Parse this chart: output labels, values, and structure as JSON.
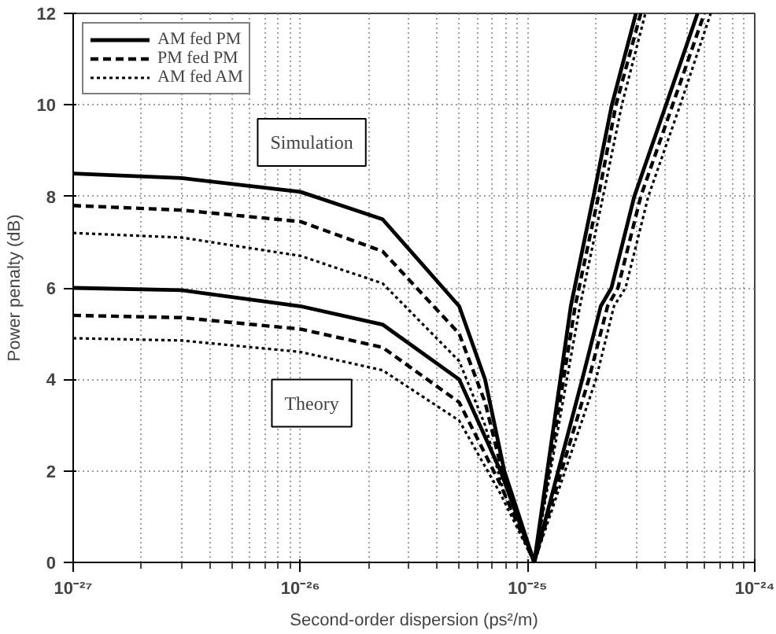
{
  "chart_data": {
    "type": "line",
    "xlabel": "Second-order dispersion (ps²/m)",
    "ylabel": "Power penalty (dB)",
    "log": "x",
    "grid": true,
    "legend": "top left",
    "xlim": [
      1e-27,
      1e-24
    ],
    "ylim": [
      0,
      12
    ],
    "xticks": [
      {
        "value": 1e-27,
        "label": "10⁻²⁷"
      },
      {
        "value": 1e-26,
        "label": "10⁻²⁶"
      },
      {
        "value": 1e-25,
        "label": "10⁻²⁵"
      },
      {
        "value": 1e-24,
        "label": "10⁻²⁴"
      }
    ],
    "yticks": [
      0,
      2,
      4,
      6,
      8,
      10,
      12
    ],
    "annotations": [
      "Simulation",
      "Theory"
    ],
    "series": [
      {
        "name": "AM fed PM",
        "color": "#000000",
        "line_style": "solid",
        "x": [
          1e-27,
          3e-27,
          1e-26,
          2.3e-26,
          5e-26,
          6.5e-26,
          7.9e-26,
          1.07e-25,
          1.55e-25,
          1.95e-25,
          2.35e-25,
          3e-25
        ],
        "values": [
          8.5,
          8.4,
          8.1,
          7.5,
          5.6,
          4.0,
          2.0,
          0,
          5.6,
          8,
          10,
          12
        ]
      },
      {
        "name": "PM fed PM",
        "color": "#000000",
        "line_style": "dashed",
        "x": [
          1e-27,
          3e-27,
          1e-26,
          2.3e-26,
          5e-26,
          6.5e-26,
          7.9e-26,
          1.07e-25,
          1.62e-25,
          2.05e-25,
          2.45e-25,
          3.15e-25
        ],
        "values": [
          7.8,
          7.7,
          7.45,
          6.8,
          5.0,
          3.5,
          1.8,
          0,
          5.6,
          8,
          10,
          12
        ]
      },
      {
        "name": "AM fed AM",
        "color": "#000000",
        "line_style": "dotted",
        "x": [
          1e-27,
          3e-27,
          1e-26,
          2.3e-26,
          5e-26,
          6.5e-26,
          7.9e-26,
          1.07e-25,
          1.7e-25,
          2.15e-25,
          2.6e-25,
          3.3e-25
        ],
        "values": [
          7.2,
          7.1,
          6.7,
          6.1,
          4.4,
          3.0,
          1.5,
          0,
          5.6,
          8,
          10,
          12
        ]
      },
      {
        "color": "#000000",
        "line_style": "solid",
        "x": [
          1e-27,
          3e-27,
          1e-26,
          2.3e-26,
          5e-26,
          7.6e-26,
          1.07e-25,
          1.74e-25,
          2.1e-25,
          2.34e-25,
          2.95e-25,
          4.07e-25,
          5.6e-25
        ],
        "values": [
          6.0,
          5.95,
          5.6,
          5.2,
          4.0,
          2.0,
          0,
          4,
          5.6,
          6,
          8,
          10,
          12
        ]
      },
      {
        "color": "#000000",
        "line_style": "dashed",
        "x": [
          1e-27,
          3e-27,
          1e-26,
          2.3e-26,
          5e-26,
          7.6e-26,
          1.07e-25,
          1.86e-25,
          2.25e-25,
          2.5e-25,
          3.15e-25,
          4.35e-25,
          6e-25
        ],
        "values": [
          5.4,
          5.35,
          5.1,
          4.7,
          3.5,
          1.7,
          0,
          4,
          5.6,
          6,
          8,
          10,
          12
        ]
      },
      {
        "color": "#000000",
        "line_style": "dotted",
        "x": [
          1e-27,
          3e-27,
          1e-26,
          2.3e-26,
          5e-26,
          7.6e-26,
          1.07e-25,
          2e-25,
          2.4e-25,
          2.7e-25,
          3.4e-25,
          4.7e-25,
          6.4e-25
        ],
        "values": [
          4.9,
          4.85,
          4.6,
          4.2,
          3.1,
          1.5,
          0,
          4,
          5.6,
          6,
          8,
          10,
          12
        ]
      }
    ]
  }
}
